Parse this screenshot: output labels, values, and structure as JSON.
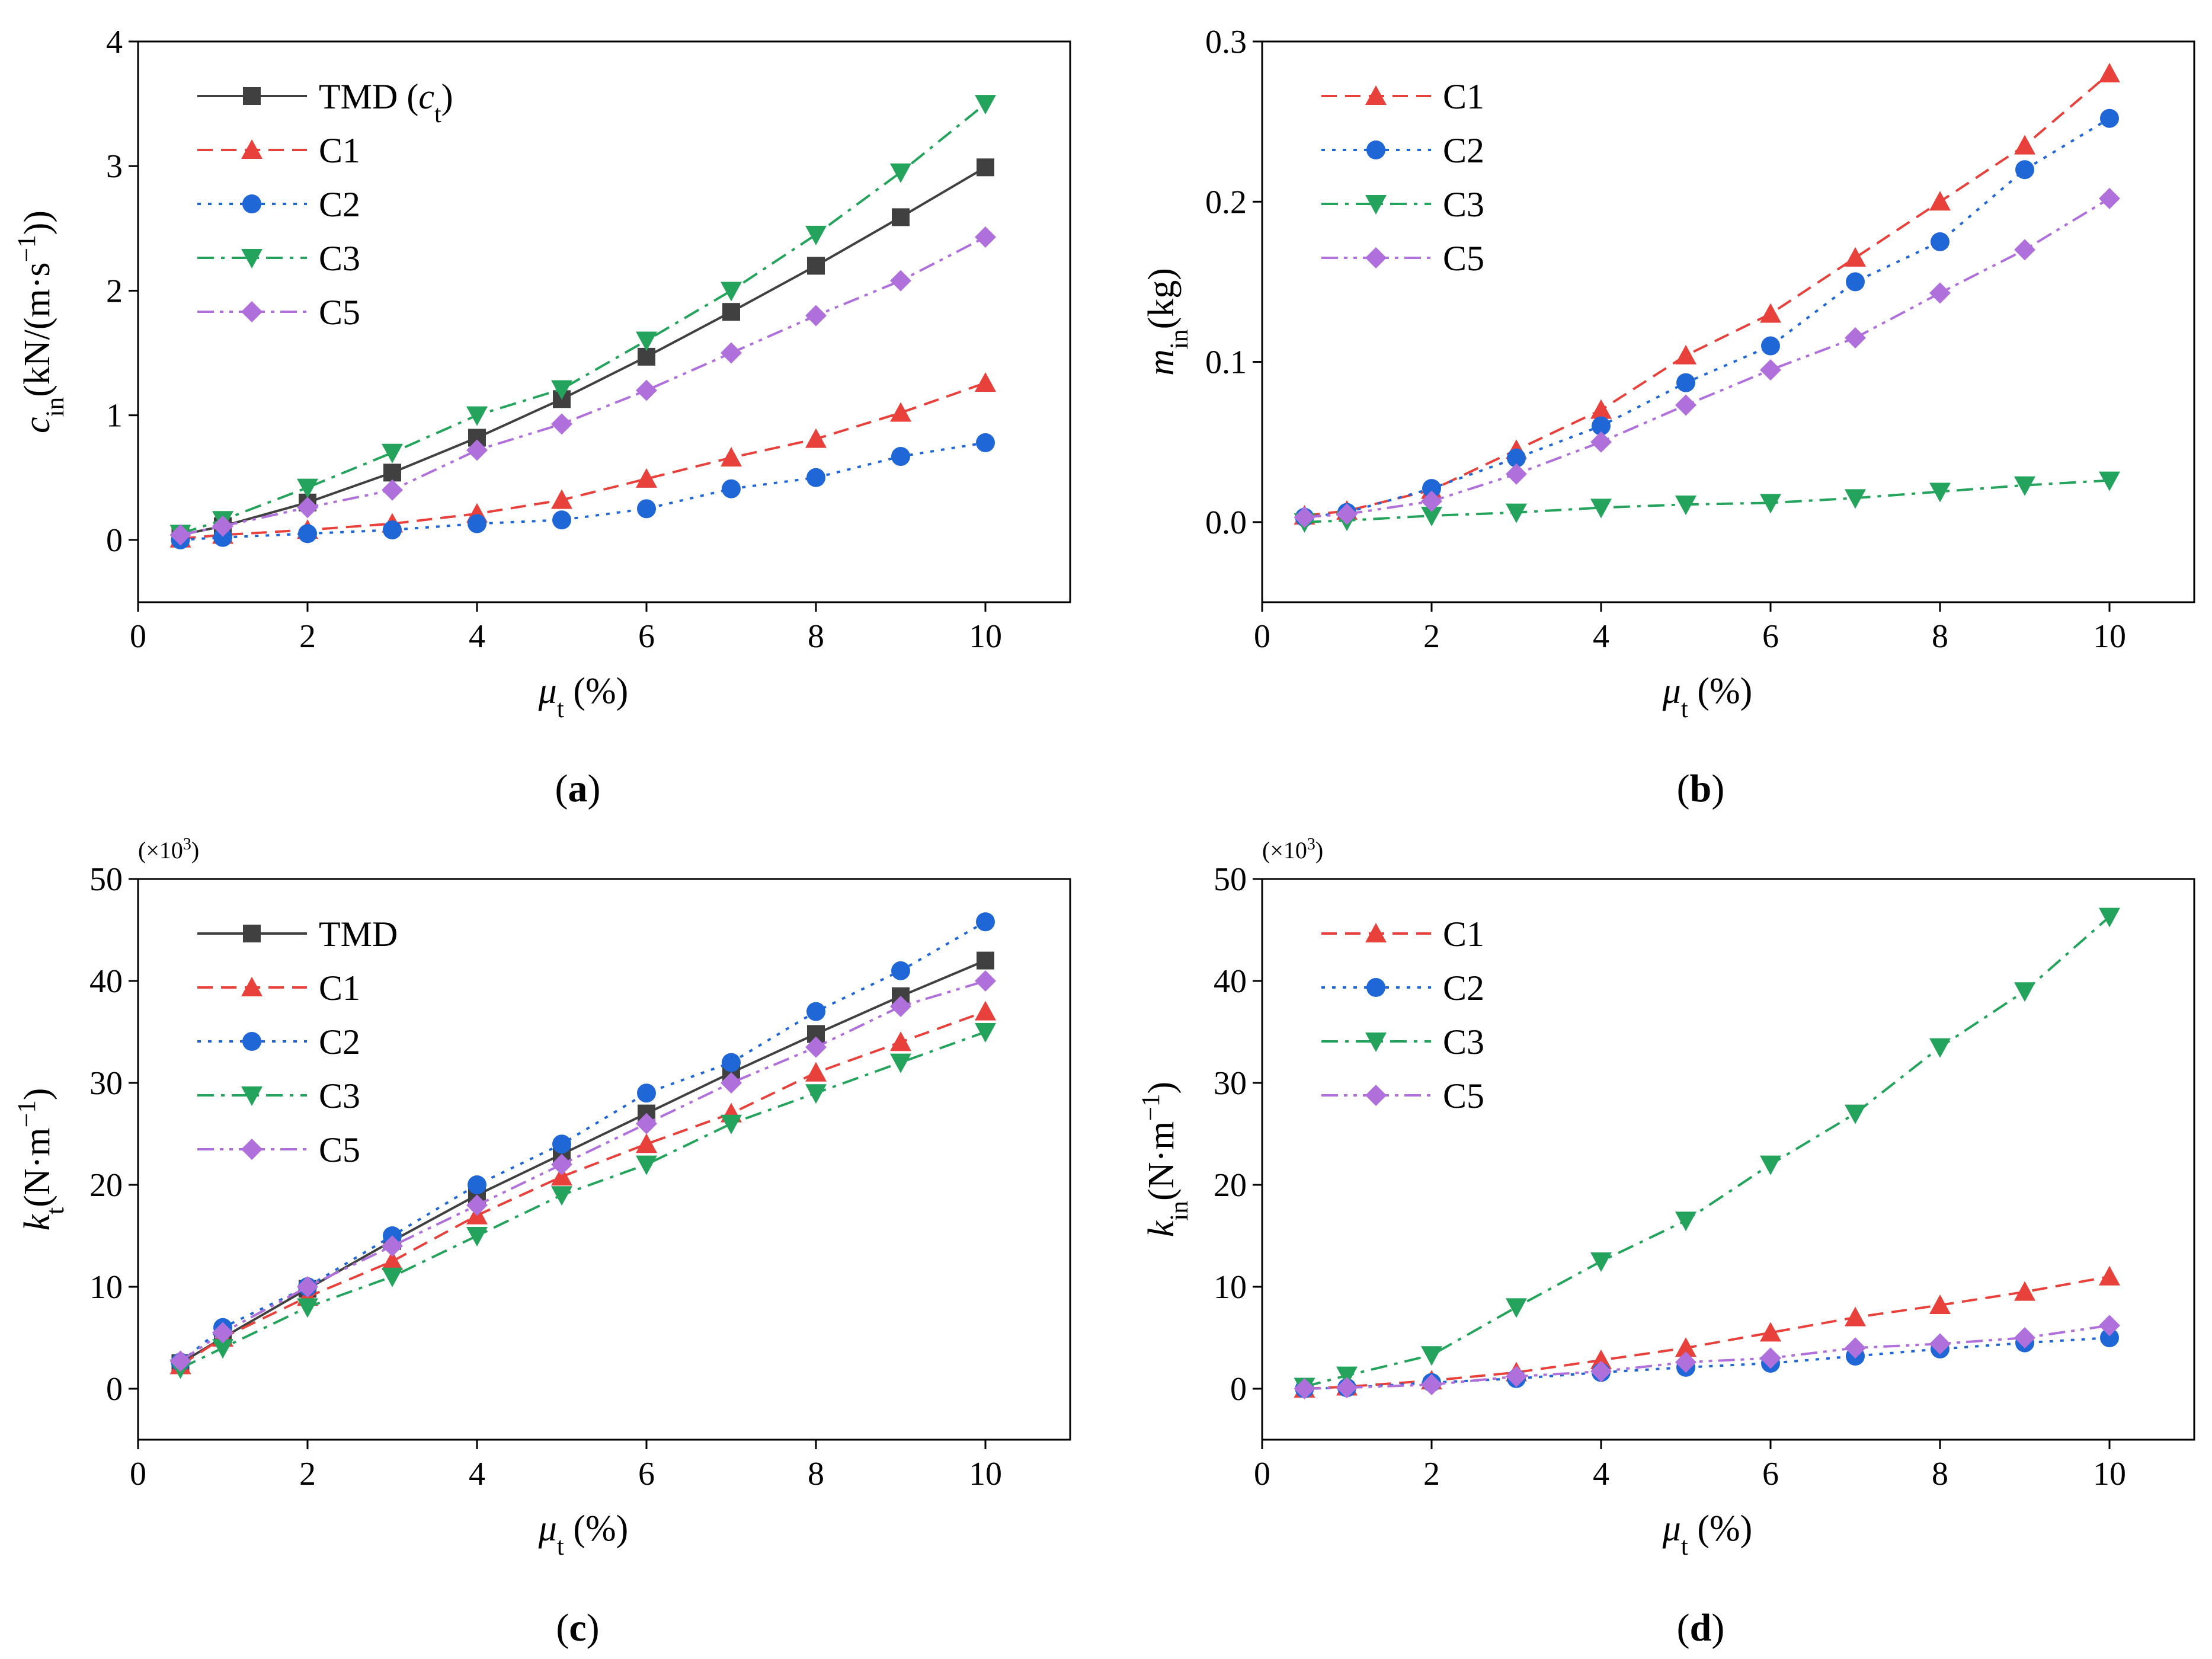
{
  "figure": {
    "panels": [
      "a",
      "b",
      "c",
      "d"
    ]
  },
  "chart_data": [
    {
      "id": "a",
      "type": "line",
      "panel_label": "a",
      "xlabel": "μt (%)",
      "ylabel": "cin(kN/(m·s−1))",
      "xlim": [
        0,
        11
      ],
      "ylim": [
        -0.5,
        4
      ],
      "xticks": [
        0,
        2,
        4,
        6,
        8,
        10
      ],
      "yticks": [
        0,
        1,
        2,
        3,
        4
      ],
      "x": [
        0.5,
        1,
        2,
        3,
        4,
        5,
        6,
        7,
        8,
        9,
        10
      ],
      "legend_position": "top-left",
      "series": [
        {
          "name": "TMD (ct)",
          "color": "#404040",
          "marker": "square",
          "dash": "solid",
          "values": [
            0.04,
            0.11,
            0.3,
            0.54,
            0.82,
            1.13,
            1.47,
            1.83,
            2.2,
            2.59,
            2.99
          ]
        },
        {
          "name": "C1",
          "color": "#e8413c",
          "marker": "triangle-up",
          "dash": "dashed",
          "values": [
            0.01,
            0.04,
            0.08,
            0.13,
            0.21,
            0.32,
            0.49,
            0.66,
            0.81,
            1.02,
            1.26
          ]
        },
        {
          "name": "C2",
          "color": "#1f66d6",
          "marker": "circle",
          "dash": "dotted",
          "values": [
            0.0,
            0.02,
            0.05,
            0.08,
            0.13,
            0.16,
            0.25,
            0.41,
            0.5,
            0.67,
            0.78
          ]
        },
        {
          "name": "C3",
          "color": "#23a35c",
          "marker": "triangle-down",
          "dash": "dashdot",
          "values": [
            0.05,
            0.16,
            0.42,
            0.7,
            1.0,
            1.21,
            1.6,
            2.0,
            2.45,
            2.95,
            3.5
          ]
        },
        {
          "name": "C5",
          "color": "#b070dc",
          "marker": "diamond",
          "dash": "dashdotdot",
          "values": [
            0.04,
            0.11,
            0.26,
            0.4,
            0.72,
            0.93,
            1.2,
            1.5,
            1.8,
            2.08,
            2.43
          ]
        }
      ]
    },
    {
      "id": "b",
      "type": "line",
      "panel_label": "b",
      "xlabel": "μt (%)",
      "ylabel": "min(kg)",
      "xlim": [
        0,
        11
      ],
      "ylim": [
        -0.05,
        0.3
      ],
      "xticks": [
        0,
        2,
        4,
        6,
        8,
        10
      ],
      "yticks": [
        0.0,
        0.1,
        0.2,
        0.3
      ],
      "ytick_labels": [
        "0.0",
        "0.1",
        "0.2",
        "0.3"
      ],
      "x": [
        0.5,
        1,
        2,
        3,
        4,
        5,
        6,
        7,
        8,
        9,
        10
      ],
      "legend_position": "top-left",
      "series": [
        {
          "name": "C1",
          "color": "#e8413c",
          "marker": "triangle-up",
          "dash": "dashed",
          "values": [
            0.004,
            0.007,
            0.02,
            0.045,
            0.07,
            0.104,
            0.13,
            0.165,
            0.2,
            0.235,
            0.28
          ]
        },
        {
          "name": "C2",
          "color": "#1f66d6",
          "marker": "circle",
          "dash": "dotted",
          "values": [
            0.003,
            0.006,
            0.021,
            0.04,
            0.06,
            0.087,
            0.11,
            0.15,
            0.175,
            0.22,
            0.252
          ]
        },
        {
          "name": "C3",
          "color": "#23a35c",
          "marker": "triangle-down",
          "dash": "dashdot",
          "values": [
            0.0,
            0.001,
            0.004,
            0.006,
            0.009,
            0.011,
            0.012,
            0.015,
            0.019,
            0.023,
            0.026
          ]
        },
        {
          "name": "C5",
          "color": "#b070dc",
          "marker": "diamond",
          "dash": "dashdotdot",
          "values": [
            0.003,
            0.005,
            0.013,
            0.03,
            0.05,
            0.073,
            0.095,
            0.115,
            0.143,
            0.17,
            0.202
          ]
        }
      ]
    },
    {
      "id": "c",
      "type": "line",
      "panel_label": "c",
      "xlabel": "μt (%)",
      "ylabel": "kt(N·m−1)",
      "multiplier": "(×10³)",
      "xlim": [
        0,
        11
      ],
      "ylim": [
        -5,
        50
      ],
      "xticks": [
        0,
        2,
        4,
        6,
        8,
        10
      ],
      "yticks": [
        0,
        10,
        20,
        30,
        40,
        50
      ],
      "x": [
        0.5,
        1,
        2,
        3,
        4,
        5,
        6,
        7,
        8,
        9,
        10
      ],
      "legend_position": "top-left",
      "series": [
        {
          "name": "TMD",
          "color": "#404040",
          "marker": "square",
          "dash": "solid",
          "values": [
            2.5,
            5.0,
            9.8,
            14.5,
            19.0,
            23.0,
            27.0,
            31.0,
            34.8,
            38.5,
            42.0
          ]
        },
        {
          "name": "C1",
          "color": "#e8413c",
          "marker": "triangle-up",
          "dash": "dashed",
          "values": [
            2.3,
            5.0,
            9.0,
            12.5,
            17.0,
            20.8,
            24.0,
            27.0,
            31.0,
            34.0,
            37.0
          ]
        },
        {
          "name": "C2",
          "color": "#1f66d6",
          "marker": "circle",
          "dash": "dotted",
          "values": [
            2.6,
            6.0,
            10.0,
            15.0,
            20.0,
            24.0,
            29.0,
            32.0,
            37.0,
            41.0,
            45.8
          ]
        },
        {
          "name": "C3",
          "color": "#23a35c",
          "marker": "triangle-down",
          "dash": "dashdot",
          "values": [
            2.0,
            4.0,
            8.0,
            11.0,
            15.0,
            19.0,
            22.0,
            26.0,
            29.0,
            32.0,
            35.0
          ]
        },
        {
          "name": "C5",
          "color": "#b070dc",
          "marker": "diamond",
          "dash": "dashdotdot",
          "values": [
            2.7,
            5.5,
            10.0,
            14.0,
            18.0,
            22.0,
            26.0,
            30.0,
            33.5,
            37.5,
            40.0
          ]
        }
      ]
    },
    {
      "id": "d",
      "type": "line",
      "panel_label": "d",
      "xlabel": "μt (%)",
      "ylabel": "kin(N·m−1)",
      "multiplier": "(×10³)",
      "xlim": [
        0,
        11
      ],
      "ylim": [
        -5,
        50
      ],
      "xticks": [
        0,
        2,
        4,
        6,
        8,
        10
      ],
      "yticks": [
        0,
        10,
        20,
        30,
        40,
        50
      ],
      "x": [
        0.5,
        1,
        2,
        3,
        4,
        5,
        6,
        7,
        8,
        9,
        10
      ],
      "legend_position": "top-left",
      "series": [
        {
          "name": "C1",
          "color": "#e8413c",
          "marker": "triangle-up",
          "dash": "dashed",
          "values": [
            0.0,
            0.2,
            0.8,
            1.6,
            2.8,
            4.0,
            5.5,
            7.0,
            8.2,
            9.5,
            11.0
          ]
        },
        {
          "name": "C2",
          "color": "#1f66d6",
          "marker": "circle",
          "dash": "dotted",
          "values": [
            0.0,
            0.1,
            0.6,
            1.0,
            1.6,
            2.1,
            2.5,
            3.2,
            3.9,
            4.5,
            5.0
          ]
        },
        {
          "name": "C3",
          "color": "#23a35c",
          "marker": "triangle-down",
          "dash": "dashdot",
          "values": [
            0.2,
            1.3,
            3.3,
            8.0,
            12.5,
            16.5,
            22.0,
            27.0,
            33.5,
            39.0,
            46.3
          ]
        },
        {
          "name": "C5",
          "color": "#b070dc",
          "marker": "diamond",
          "dash": "dashdotdot",
          "values": [
            0.0,
            0.1,
            0.4,
            1.2,
            1.7,
            2.6,
            3.0,
            4.0,
            4.4,
            5.0,
            6.2
          ]
        }
      ]
    }
  ]
}
